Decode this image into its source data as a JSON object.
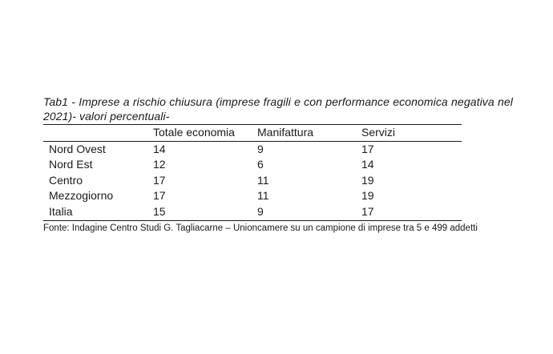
{
  "caption": "Tab1 - Imprese a rischio chiusura (imprese fragili e con performance economica negativa nel 2021)- valori percentuali-",
  "table": {
    "headers": [
      "",
      "Totale economia",
      "Manifattura",
      "Servizi"
    ],
    "rows": [
      [
        "Nord Ovest",
        "14",
        "9",
        "17"
      ],
      [
        "Nord Est",
        "12",
        "6",
        "14"
      ],
      [
        "Centro",
        "17",
        "11",
        "19"
      ],
      [
        "Mezzogiorno",
        "17",
        "11",
        "19"
      ],
      [
        "Italia",
        "15",
        "9",
        "17"
      ]
    ]
  },
  "source": "Fonte: Indagine Centro Studi G. Tagliacarne – Unioncamere su un campione di imprese tra 5 e 499 addetti"
}
